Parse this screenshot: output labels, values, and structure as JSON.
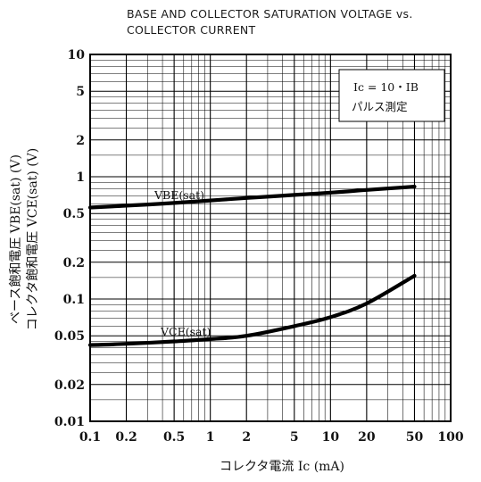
{
  "chart_data": {
    "type": "line",
    "title_lines": [
      "BASE AND COLLECTOR SATURATION VOLTAGE vs.",
      "COLLECTOR CURRENT"
    ],
    "xlabel": "コレクタ電流 Ic (mA)",
    "ylabel_lines": [
      "ベース飽和電圧 VBE(sat) (V)",
      "コレクタ飽和電圧 VCE(sat) (V)"
    ],
    "x_scale": "log",
    "y_scale": "log",
    "xlim": [
      0.1,
      100
    ],
    "ylim": [
      0.01,
      10
    ],
    "x_ticks": [
      0.1,
      0.2,
      0.5,
      1,
      2,
      5,
      10,
      20,
      50,
      100
    ],
    "x_tick_labels": [
      "0.1",
      "0.2",
      "0.5",
      "1",
      "2",
      "5",
      "10",
      "20",
      "50",
      "100"
    ],
    "y_ticks": [
      0.01,
      0.02,
      0.05,
      0.1,
      0.2,
      0.5,
      1,
      2,
      5,
      10
    ],
    "y_tick_labels": [
      "0.01",
      "0.02",
      "0.05",
      "0.1",
      "0.2",
      "0.5",
      "1",
      "2",
      "5",
      "10"
    ],
    "grid": true,
    "annotation_lines": [
      "Ic = 10・IB",
      "パルス測定"
    ],
    "series": [
      {
        "name": "VBE(sat)",
        "x": [
          0.1,
          0.2,
          0.5,
          1,
          2,
          5,
          10,
          20,
          50
        ],
        "y": [
          0.56,
          0.58,
          0.61,
          0.64,
          0.67,
          0.71,
          0.74,
          0.78,
          0.83
        ]
      },
      {
        "name": "VCE(sat)",
        "x": [
          0.1,
          0.2,
          0.5,
          1,
          2,
          5,
          10,
          20,
          50
        ],
        "y": [
          0.042,
          0.043,
          0.045,
          0.047,
          0.05,
          0.06,
          0.071,
          0.092,
          0.155
        ]
      }
    ]
  }
}
